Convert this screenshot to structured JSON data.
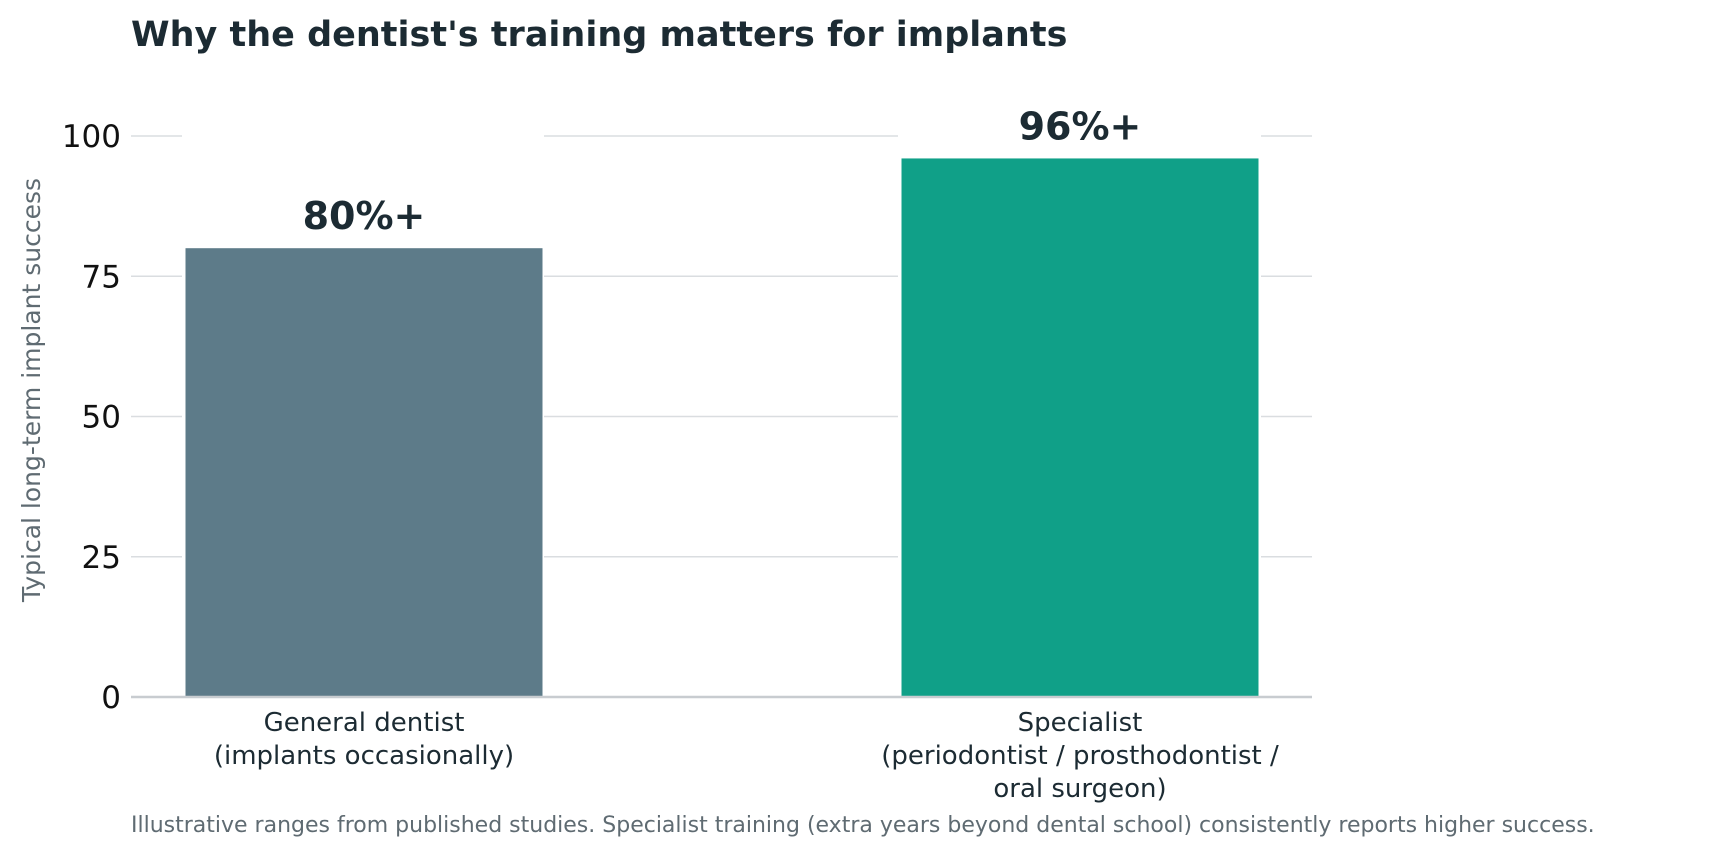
{
  "chart_data": {
    "type": "bar",
    "title": "Why the dentist's training matters for implants",
    "xlabel": "",
    "ylabel": "Typical long-term implant success",
    "ylim": [
      0,
      100
    ],
    "yticks": [
      0,
      25,
      50,
      75,
      100
    ],
    "grid": true,
    "categories": [
      [
        "General dentist",
        "(implants occasionally)"
      ],
      [
        "Specialist",
        "(periodontist / prosthodontist /",
        "oral surgeon)"
      ]
    ],
    "values": [
      80,
      96
    ],
    "data_labels": [
      "80%+",
      "96%+"
    ],
    "bar_colors": [
      "#5d7b89",
      "#10a088"
    ],
    "note": "Illustrative ranges from published studies. Specialist training (extra years beyond dental school) consistently reports higher success."
  }
}
